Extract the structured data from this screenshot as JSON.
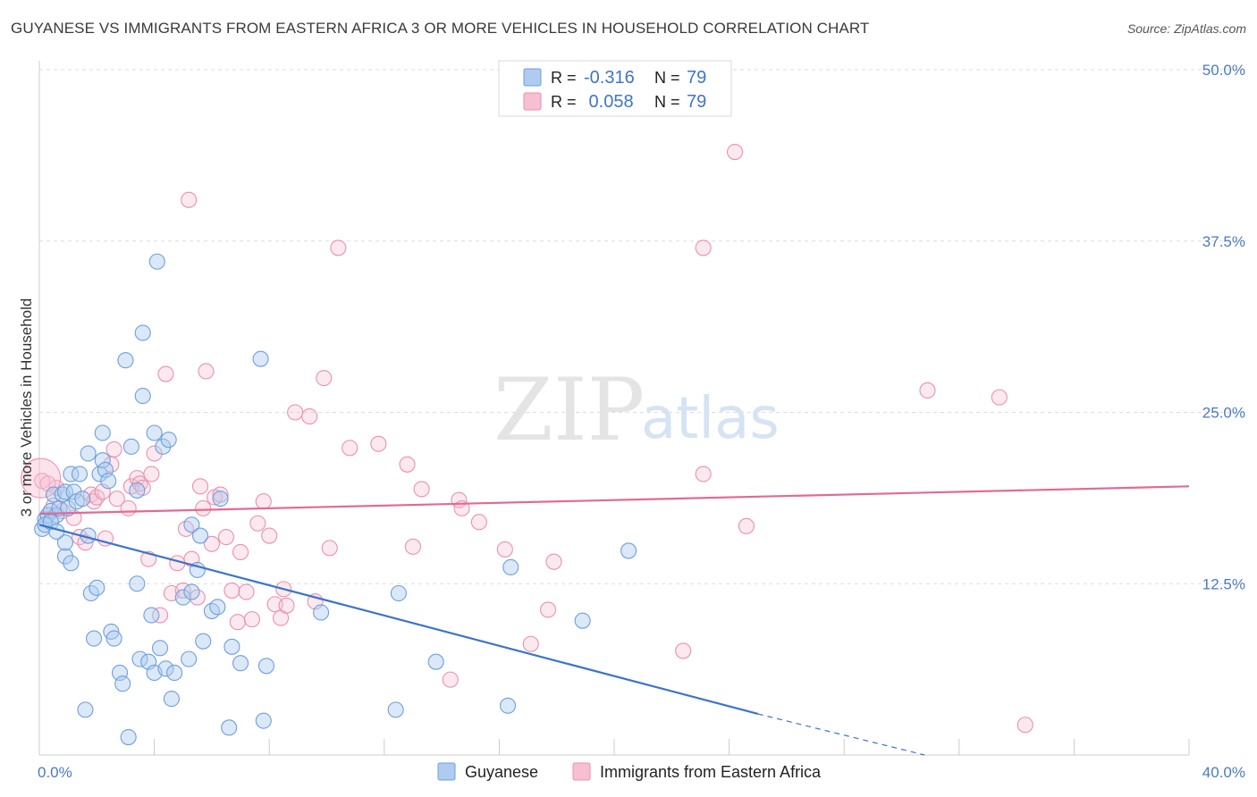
{
  "title": "GUYANESE VS IMMIGRANTS FROM EASTERN AFRICA 3 OR MORE VEHICLES IN HOUSEHOLD CORRELATION CHART",
  "source": "Source: ZipAtlas.com",
  "watermark": {
    "part1": "ZIP",
    "part2": "atlas"
  },
  "colors": {
    "series1_fill": "#aecbf0",
    "series1_stroke": "#6f9fdc",
    "series1_line": "#3a74cc",
    "series2_fill": "#f7bfd2",
    "series2_stroke": "#ea8fb0",
    "series2_line": "#e26a95",
    "tick_label": "#4a7bc4",
    "grid": "#dddddd"
  },
  "legend": {
    "rows": [
      {
        "r_label": "R = ",
        "r_value": "-0.316",
        "n_label": "N = ",
        "n_value": "79"
      },
      {
        "r_label": "R = ",
        "r_value": " 0.058",
        "n_label": "N = ",
        "n_value": "79"
      }
    ]
  },
  "bottom_legend": [
    "Guyanese",
    "Immigrants from Eastern Africa"
  ],
  "chart_data": {
    "type": "scatter",
    "title": "GUYANESE VS IMMIGRANTS FROM EASTERN AFRICA 3 OR MORE VEHICLES IN HOUSEHOLD CORRELATION CHART",
    "xlabel": "",
    "ylabel": "3 or more Vehicles in Household",
    "xlim": [
      0,
      40
    ],
    "ylim": [
      0,
      50
    ],
    "x_tick_labels": [
      "0.0%",
      "40.0%"
    ],
    "y_ticks": [
      12.5,
      25.0,
      37.5,
      50.0
    ],
    "y_tick_labels": [
      "12.5%",
      "25.0%",
      "37.5%",
      "50.0%"
    ],
    "grid": true,
    "legend_position": "top-center",
    "series": [
      {
        "name": "Guyanese",
        "R": -0.316,
        "N": 79,
        "trend": {
          "x0": 0,
          "y0": 16.8,
          "x1": 25,
          "y1": 3.0,
          "dashed_to_x": 30.8,
          "dashed_to_y": 0.0
        },
        "points": [
          [
            0.1,
            16.5
          ],
          [
            0.2,
            17.2
          ],
          [
            0.3,
            17.5
          ],
          [
            0.4,
            17.8
          ],
          [
            0.5,
            19.0
          ],
          [
            0.6,
            17.5
          ],
          [
            0.7,
            18.0
          ],
          [
            0.8,
            19.0
          ],
          [
            0.9,
            19.2
          ],
          [
            0.9,
            14.5
          ],
          [
            0.9,
            15.5
          ],
          [
            1.0,
            18.0
          ],
          [
            1.1,
            14.0
          ],
          [
            1.1,
            20.5
          ],
          [
            1.2,
            19.2
          ],
          [
            1.3,
            18.5
          ],
          [
            1.4,
            20.5
          ],
          [
            1.5,
            18.7
          ],
          [
            1.6,
            3.3
          ],
          [
            1.7,
            22.0
          ],
          [
            1.7,
            16.0
          ],
          [
            1.8,
            11.8
          ],
          [
            1.9,
            8.5
          ],
          [
            2.0,
            12.2
          ],
          [
            2.1,
            20.5
          ],
          [
            2.2,
            21.5
          ],
          [
            2.2,
            23.5
          ],
          [
            2.3,
            20.8
          ],
          [
            2.4,
            20.0
          ],
          [
            2.5,
            9.0
          ],
          [
            2.6,
            8.5
          ],
          [
            2.8,
            6.0
          ],
          [
            2.9,
            5.2
          ],
          [
            3.0,
            28.8
          ],
          [
            3.1,
            1.3
          ],
          [
            3.2,
            22.5
          ],
          [
            3.4,
            19.3
          ],
          [
            3.4,
            12.5
          ],
          [
            3.5,
            7.0
          ],
          [
            3.6,
            26.2
          ],
          [
            3.6,
            30.8
          ],
          [
            3.8,
            6.8
          ],
          [
            3.9,
            10.2
          ],
          [
            4.0,
            6.0
          ],
          [
            4.0,
            23.5
          ],
          [
            4.1,
            36.0
          ],
          [
            4.2,
            7.8
          ],
          [
            4.3,
            22.5
          ],
          [
            4.4,
            6.3
          ],
          [
            4.5,
            23.0
          ],
          [
            4.6,
            4.1
          ],
          [
            4.7,
            6.0
          ],
          [
            5.0,
            11.5
          ],
          [
            5.2,
            7.0
          ],
          [
            5.3,
            11.9
          ],
          [
            5.3,
            16.8
          ],
          [
            5.5,
            13.5
          ],
          [
            5.6,
            16.0
          ],
          [
            5.7,
            8.3
          ],
          [
            6.0,
            10.5
          ],
          [
            6.2,
            10.8
          ],
          [
            6.3,
            18.7
          ],
          [
            6.6,
            2.0
          ],
          [
            6.7,
            7.9
          ],
          [
            7.0,
            6.7
          ],
          [
            7.7,
            28.9
          ],
          [
            7.8,
            2.5
          ],
          [
            7.9,
            6.5
          ],
          [
            9.8,
            10.4
          ],
          [
            12.5,
            11.8
          ],
          [
            12.4,
            3.3
          ],
          [
            13.8,
            6.8
          ],
          [
            16.3,
            3.6
          ],
          [
            16.4,
            13.7
          ],
          [
            18.9,
            9.8
          ],
          [
            20.5,
            14.9
          ],
          [
            0.2,
            16.8
          ],
          [
            0.4,
            17.0
          ],
          [
            0.6,
            16.3
          ]
        ]
      },
      {
        "name": "Immigrants from Eastern Africa",
        "R": 0.058,
        "N": 79,
        "trend": {
          "x0": 0,
          "y0": 17.6,
          "x1": 40,
          "y1": 19.6
        },
        "points": [
          [
            0.1,
            20.0
          ],
          [
            0.6,
            19.5
          ],
          [
            0.8,
            17.8
          ],
          [
            1.2,
            17.3
          ],
          [
            1.4,
            15.9
          ],
          [
            1.6,
            15.5
          ],
          [
            1.8,
            19.0
          ],
          [
            1.9,
            18.5
          ],
          [
            2.0,
            18.8
          ],
          [
            2.2,
            19.2
          ],
          [
            2.3,
            15.8
          ],
          [
            2.5,
            21.2
          ],
          [
            2.6,
            22.3
          ],
          [
            2.7,
            18.7
          ],
          [
            3.1,
            18.0
          ],
          [
            3.2,
            19.6
          ],
          [
            3.4,
            20.2
          ],
          [
            3.5,
            19.8
          ],
          [
            3.6,
            19.5
          ],
          [
            3.8,
            14.3
          ],
          [
            3.9,
            20.5
          ],
          [
            4.0,
            22.0
          ],
          [
            4.2,
            10.2
          ],
          [
            4.4,
            27.8
          ],
          [
            4.6,
            11.8
          ],
          [
            4.8,
            14.0
          ],
          [
            5.0,
            12.0
          ],
          [
            5.1,
            16.5
          ],
          [
            5.2,
            40.5
          ],
          [
            5.3,
            14.3
          ],
          [
            5.5,
            11.5
          ],
          [
            5.6,
            19.6
          ],
          [
            5.7,
            18.0
          ],
          [
            5.8,
            28.0
          ],
          [
            6.0,
            15.4
          ],
          [
            6.1,
            18.8
          ],
          [
            6.3,
            19.0
          ],
          [
            6.5,
            15.9
          ],
          [
            6.7,
            12.0
          ],
          [
            6.9,
            9.7
          ],
          [
            7.0,
            14.8
          ],
          [
            7.2,
            11.9
          ],
          [
            7.4,
            9.9
          ],
          [
            7.6,
            16.9
          ],
          [
            7.8,
            18.5
          ],
          [
            8.0,
            16.0
          ],
          [
            8.2,
            11.0
          ],
          [
            8.4,
            10.0
          ],
          [
            8.5,
            12.1
          ],
          [
            8.6,
            10.9
          ],
          [
            8.9,
            25.0
          ],
          [
            9.4,
            24.7
          ],
          [
            9.6,
            11.2
          ],
          [
            9.9,
            27.5
          ],
          [
            10.1,
            15.1
          ],
          [
            10.4,
            37.0
          ],
          [
            10.8,
            22.4
          ],
          [
            11.8,
            22.7
          ],
          [
            12.8,
            21.2
          ],
          [
            13.0,
            15.2
          ],
          [
            13.3,
            19.4
          ],
          [
            14.3,
            5.5
          ],
          [
            14.6,
            18.6
          ],
          [
            14.7,
            18.0
          ],
          [
            15.3,
            17.0
          ],
          [
            16.2,
            15.0
          ],
          [
            17.1,
            8.1
          ],
          [
            17.7,
            10.6
          ],
          [
            17.9,
            14.1
          ],
          [
            22.4,
            7.6
          ],
          [
            23.1,
            20.5
          ],
          [
            23.1,
            37.0
          ],
          [
            24.2,
            44.0
          ],
          [
            24.6,
            16.7
          ],
          [
            30.9,
            26.6
          ],
          [
            33.4,
            26.1
          ],
          [
            34.3,
            2.2
          ],
          [
            0.3,
            19.8
          ],
          [
            0.5,
            18.2
          ]
        ]
      }
    ]
  }
}
